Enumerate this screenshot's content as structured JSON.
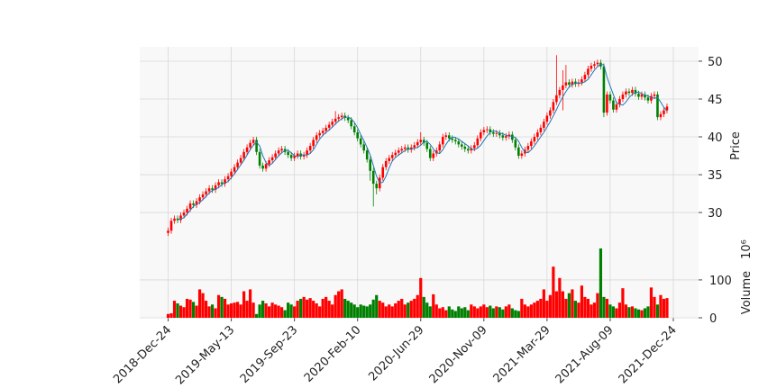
{
  "chart_data": {
    "type": "candlestick",
    "x": [
      0,
      1,
      2,
      3,
      4,
      5,
      6,
      7,
      8,
      9,
      10,
      11,
      12,
      13,
      14,
      15,
      16,
      17,
      18,
      19,
      20,
      21,
      22,
      23,
      24,
      25,
      26,
      27,
      28,
      29,
      30,
      31,
      32,
      33,
      34,
      35,
      36,
      37,
      38,
      39,
      40,
      41,
      42,
      43,
      44,
      45,
      46,
      47,
      48,
      49,
      50,
      51,
      52,
      53,
      54,
      55,
      56,
      57,
      58,
      59,
      60,
      61,
      62,
      63,
      64,
      65,
      66,
      67,
      68,
      69,
      70,
      71,
      72,
      73,
      74,
      75,
      76,
      77,
      78,
      79,
      80,
      81,
      82,
      83,
      84,
      85,
      86,
      87,
      88,
      89,
      90,
      91,
      92,
      93,
      94,
      95,
      96,
      97,
      98,
      99,
      100,
      101,
      102,
      103,
      104,
      105,
      106,
      107,
      108,
      109,
      110,
      111,
      112,
      113,
      114,
      115,
      116,
      117,
      118,
      119,
      120,
      121,
      122,
      123,
      124,
      125,
      126,
      127,
      128,
      129,
      130,
      131,
      132,
      133,
      134,
      135,
      136,
      137,
      138,
      139,
      140,
      141,
      142,
      143,
      144,
      145,
      146,
      147,
      148,
      149,
      150,
      151,
      152,
      153,
      154,
      155,
      156,
      157,
      158
    ],
    "open": [
      27.3,
      27.6,
      28.9,
      29.2,
      29.0,
      29.6,
      30.0,
      30.5,
      31.2,
      31.0,
      31.5,
      32.0,
      32.4,
      32.8,
      33.2,
      33.0,
      33.6,
      34.0,
      33.8,
      34.4,
      34.8,
      35.4,
      36.0,
      36.6,
      37.2,
      38.0,
      38.6,
      39.2,
      39.6,
      38.0,
      36.2,
      35.8,
      36.4,
      36.9,
      37.3,
      37.8,
      38.2,
      38.4,
      38.0,
      37.6,
      37.2,
      37.5,
      37.8,
      37.4,
      37.6,
      38.2,
      38.8,
      39.6,
      40.2,
      40.5,
      40.8,
      41.2,
      41.6,
      42.0,
      42.4,
      42.6,
      42.8,
      42.5,
      42.2,
      41.4,
      40.6,
      39.8,
      39.0,
      38.2,
      37.0,
      35.5,
      33.8,
      33.2,
      34.6,
      36.0,
      36.8,
      37.2,
      37.6,
      37.9,
      38.2,
      38.4,
      38.6,
      38.3,
      38.6,
      38.9,
      39.3,
      39.6,
      39.2,
      38.4,
      37.2,
      37.8,
      38.2,
      39.0,
      40.0,
      40.2,
      39.8,
      39.6,
      39.4,
      39.0,
      38.7,
      38.4,
      38.2,
      38.5,
      38.9,
      39.8,
      40.6,
      40.9,
      41.0,
      40.6,
      40.4,
      40.5,
      40.2,
      39.9,
      40.1,
      40.3,
      39.6,
      38.6,
      37.5,
      37.8,
      38.3,
      38.8,
      39.4,
      40.0,
      40.6,
      41.2,
      42.0,
      42.8,
      43.5,
      44.6,
      45.5,
      46.2,
      46.8,
      47.2,
      46.9,
      47.3,
      47.0,
      47.2,
      47.6,
      48.2,
      49.0,
      49.4,
      49.6,
      49.8,
      49.3,
      43.2,
      45.6,
      44.8,
      43.6,
      44.3,
      45.0,
      45.6,
      46.0,
      45.8,
      46.2,
      45.7,
      45.3,
      45.6,
      45.2,
      44.8,
      45.4,
      45.6,
      42.6,
      43.0,
      43.5
    ],
    "high": [
      28.0,
      29.3,
      29.6,
      29.6,
      30.0,
      30.4,
      30.9,
      31.6,
      31.6,
      31.9,
      32.4,
      32.8,
      33.2,
      33.6,
      33.6,
      34.0,
      34.4,
      34.4,
      34.8,
      35.2,
      35.8,
      36.4,
      37.0,
      37.6,
      38.4,
      39.0,
      39.6,
      40.0,
      40.0,
      38.4,
      36.6,
      36.8,
      37.3,
      37.7,
      38.2,
      38.6,
      38.8,
      38.8,
      38.4,
      38.0,
      37.9,
      38.2,
      38.2,
      38.0,
      38.6,
      39.2,
      40.0,
      40.6,
      40.9,
      41.2,
      41.6,
      42.0,
      42.4,
      43.4,
      43.0,
      43.2,
      43.2,
      42.9,
      42.6,
      41.8,
      41.0,
      40.2,
      39.4,
      38.6,
      37.4,
      35.9,
      34.2,
      35.0,
      36.4,
      37.2,
      37.6,
      38.0,
      38.3,
      38.6,
      38.8,
      39.0,
      39.0,
      39.0,
      39.3,
      39.7,
      40.6,
      40.0,
      39.6,
      38.8,
      38.2,
      38.6,
      39.4,
      40.4,
      40.6,
      40.6,
      40.2,
      40.0,
      39.8,
      39.4,
      39.1,
      38.8,
      38.9,
      39.3,
      40.2,
      41.0,
      41.3,
      41.4,
      41.4,
      41.0,
      40.9,
      40.9,
      40.6,
      40.5,
      40.7,
      40.7,
      40.0,
      39.0,
      38.2,
      38.7,
      39.2,
      39.8,
      40.4,
      41.0,
      41.6,
      42.4,
      43.2,
      43.9,
      45.0,
      50.8,
      46.6,
      48.8,
      49.5,
      47.6,
      47.7,
      47.7,
      47.6,
      48.0,
      48.6,
      49.4,
      49.8,
      50.0,
      50.2,
      50.2,
      49.7,
      46.0,
      46.0,
      45.2,
      44.7,
      45.4,
      46.0,
      46.4,
      46.4,
      46.6,
      46.6,
      46.1,
      46.0,
      46.0,
      45.6,
      45.8,
      46.0,
      46.0,
      43.4,
      43.9,
      44.4
    ],
    "low": [
      26.9,
      27.2,
      28.5,
      28.6,
      28.6,
      29.2,
      29.6,
      30.1,
      30.6,
      30.6,
      31.1,
      31.6,
      32.0,
      32.4,
      32.6,
      32.6,
      33.2,
      33.4,
      33.4,
      34.0,
      34.4,
      35.0,
      35.6,
      36.2,
      36.8,
      37.6,
      38.2,
      38.8,
      37.6,
      35.8,
      35.4,
      35.4,
      36.0,
      36.5,
      36.9,
      37.4,
      37.8,
      37.6,
      37.2,
      36.8,
      36.8,
      37.1,
      37.0,
      37.0,
      37.2,
      37.8,
      38.4,
      39.2,
      39.8,
      40.1,
      40.4,
      40.8,
      41.2,
      41.6,
      42.0,
      42.2,
      42.1,
      41.8,
      41.0,
      40.2,
      39.4,
      38.6,
      37.8,
      36.6,
      34.2,
      30.8,
      32.4,
      32.8,
      34.2,
      35.6,
      36.4,
      36.8,
      37.2,
      37.5,
      37.8,
      38.0,
      37.9,
      37.9,
      38.2,
      38.5,
      38.9,
      38.8,
      38.0,
      36.8,
      36.8,
      37.4,
      37.8,
      38.6,
      39.6,
      39.4,
      39.2,
      39.0,
      38.6,
      38.3,
      38.0,
      37.8,
      37.8,
      38.1,
      38.5,
      39.4,
      40.2,
      40.5,
      40.2,
      40.0,
      40.0,
      39.8,
      39.5,
      39.5,
      39.7,
      39.2,
      38.2,
      37.1,
      37.1,
      37.4,
      37.9,
      38.4,
      39.0,
      39.6,
      40.2,
      40.8,
      41.6,
      42.4,
      43.1,
      44.2,
      45.1,
      43.5,
      46.4,
      46.5,
      46.5,
      46.6,
      46.6,
      46.8,
      47.2,
      47.8,
      48.6,
      49.0,
      49.2,
      48.9,
      42.6,
      42.8,
      44.4,
      43.2,
      43.2,
      43.9,
      44.6,
      45.2,
      45.4,
      45.4,
      45.3,
      44.9,
      44.9,
      44.8,
      44.4,
      44.4,
      45.0,
      42.2,
      42.2,
      42.6,
      43.1
    ],
    "close": [
      27.6,
      28.9,
      29.2,
      29.0,
      29.6,
      30.0,
      30.5,
      31.2,
      31.0,
      31.5,
      32.0,
      32.4,
      32.8,
      33.2,
      33.0,
      33.6,
      34.0,
      33.8,
      34.4,
      34.8,
      35.4,
      36.0,
      36.6,
      37.2,
      38.0,
      38.6,
      39.2,
      39.6,
      38.0,
      36.2,
      35.8,
      36.4,
      36.9,
      37.3,
      37.8,
      38.2,
      38.4,
      38.0,
      37.6,
      37.2,
      37.5,
      37.8,
      37.4,
      37.6,
      38.2,
      38.8,
      39.6,
      40.2,
      40.5,
      40.8,
      41.2,
      41.6,
      42.0,
      42.4,
      42.6,
      42.8,
      42.5,
      42.2,
      41.4,
      40.6,
      39.8,
      39.0,
      38.2,
      37.0,
      35.5,
      33.8,
      33.2,
      34.6,
      36.0,
      36.8,
      37.2,
      37.6,
      37.9,
      38.2,
      38.4,
      38.6,
      38.3,
      38.6,
      38.9,
      39.3,
      39.6,
      39.2,
      38.4,
      37.2,
      37.8,
      38.2,
      39.0,
      40.0,
      40.2,
      39.8,
      39.6,
      39.4,
      39.0,
      38.7,
      38.4,
      38.2,
      38.5,
      38.9,
      39.8,
      40.6,
      40.9,
      41.0,
      40.6,
      40.4,
      40.5,
      40.2,
      39.9,
      40.1,
      40.3,
      39.6,
      38.6,
      37.5,
      37.8,
      38.3,
      38.8,
      39.4,
      40.0,
      40.6,
      41.2,
      42.0,
      42.8,
      43.5,
      44.6,
      45.5,
      46.2,
      46.8,
      47.2,
      46.9,
      47.3,
      47.0,
      47.2,
      47.6,
      48.2,
      49.0,
      49.4,
      49.6,
      49.8,
      49.3,
      43.2,
      45.6,
      44.8,
      43.6,
      44.3,
      45.0,
      45.6,
      46.0,
      45.8,
      46.2,
      45.7,
      45.3,
      45.6,
      45.2,
      44.8,
      45.4,
      45.6,
      42.6,
      43.0,
      43.5,
      44.0
    ],
    "mav": [
      null,
      null,
      null,
      29.0,
      29.2,
      29.3,
      29.8,
      30.3,
      30.8,
      31.1,
      31.3,
      31.7,
      32.1,
      32.6,
      32.9,
      33.1,
      33.3,
      33.7,
      33.9,
      34.1,
      34.6,
      35.1,
      35.7,
      36.3,
      36.9,
      37.6,
      38.3,
      38.9,
      39.3,
      38.8,
      37.5,
      36.6,
      36.2,
      36.5,
      37.0,
      37.5,
      37.9,
      38.2,
      38.2,
      37.9,
      37.5,
      37.4,
      37.6,
      37.6,
      37.6,
      37.8,
      38.3,
      39.0,
      39.7,
      40.2,
      40.6,
      40.9,
      41.3,
      41.7,
      42.1,
      42.4,
      42.6,
      42.6,
      42.4,
      41.9,
      41.2,
      40.3,
      39.5,
      38.6,
      37.6,
      36.2,
      34.8,
      33.9,
      34.0,
      34.8,
      35.9,
      36.8,
      37.3,
      37.6,
      37.9,
      38.2,
      38.4,
      38.4,
      38.5,
      38.6,
      38.9,
      39.3,
      39.4,
      39.0,
      38.4,
      37.9,
      37.8,
      38.3,
      39.0,
      39.6,
      40.0,
      39.9,
      39.7,
      39.4,
      39.1,
      38.8,
      38.4,
      38.3,
      38.5,
      38.9,
      39.5,
      40.1,
      40.6,
      40.8,
      40.7,
      40.5,
      40.4,
      40.2,
      40.1,
      40.1,
      39.9,
      39.4,
      38.6,
      38.0,
      37.9,
      38.3,
      38.8,
      39.4,
      40.0,
      40.6,
      41.3,
      42.0,
      42.8,
      43.6,
      44.5,
      45.3,
      46.0,
      46.6,
      46.9,
      47.1,
      47.1,
      47.1,
      47.3,
      47.6,
      48.2,
      48.8,
      49.3,
      49.6,
      49.5,
      47.9,
      46.7,
      45.6,
      44.5,
      44.3,
      44.2,
      44.6,
      45.2,
      45.6,
      45.9,
      45.9,
      45.7,
      45.5,
      45.4,
      45.2,
      45.1,
      45.2,
      44.6,
      43.9,
      43.4,
      43.6
    ],
    "volume": [
      10,
      12,
      45,
      38,
      32,
      28,
      50,
      48,
      42,
      32,
      75,
      65,
      45,
      30,
      35,
      25,
      60,
      55,
      50,
      35,
      38,
      40,
      42,
      35,
      70,
      45,
      75,
      40,
      10,
      35,
      45,
      38,
      30,
      40,
      35,
      32,
      28,
      20,
      40,
      35,
      30,
      45,
      50,
      55,
      48,
      52,
      45,
      38,
      30,
      50,
      55,
      45,
      35,
      60,
      70,
      75,
      50,
      45,
      40,
      35,
      28,
      35,
      32,
      30,
      35,
      48,
      60,
      45,
      40,
      30,
      35,
      30,
      38,
      45,
      50,
      35,
      40,
      45,
      50,
      60,
      105,
      55,
      40,
      30,
      62,
      35,
      25,
      28,
      20,
      30,
      22,
      18,
      30,
      25,
      28,
      20,
      35,
      30,
      25,
      30,
      35,
      28,
      32,
      25,
      30,
      28,
      22,
      30,
      35,
      25,
      20,
      18,
      50,
      35,
      30,
      35,
      40,
      45,
      50,
      75,
      45,
      60,
      135,
      70,
      105,
      70,
      50,
      65,
      75,
      45,
      40,
      85,
      55,
      50,
      35,
      40,
      65,
      183,
      55,
      50,
      35,
      30,
      25,
      40,
      78,
      35,
      28,
      30,
      25,
      22,
      20,
      25,
      30,
      80,
      55,
      35,
      60,
      50,
      52
    ],
    "up_color": "#ff0000",
    "down_color": "#008000",
    "mav_color": "#1f77b4",
    "xlim": [
      -9,
      168
    ],
    "xticks": [
      {
        "value": 0,
        "label": "2018-Dec-24"
      },
      {
        "value": 20,
        "label": "2019-May-13"
      },
      {
        "value": 40,
        "label": "2019-Sep-23"
      },
      {
        "value": 60,
        "label": "2020-Feb-10"
      },
      {
        "value": 80,
        "label": "2020-Jun-29"
      },
      {
        "value": 100,
        "label": "2020-Nov-09"
      },
      {
        "value": 120,
        "label": "2021-Mar-29"
      },
      {
        "value": 140,
        "label": "2021-Aug-09"
      },
      {
        "value": 160,
        "label": "2021-Dec-24"
      }
    ],
    "ylabel": "Price",
    "ylim": [
      26.2,
      51.9
    ],
    "yticks": [
      30,
      35,
      40,
      45,
      50
    ],
    "y2label": "Volume",
    "y2offset": "10⁶",
    "y2lim": [
      0,
      202
    ],
    "y2ticks": [
      0,
      100
    ],
    "grid": true
  }
}
